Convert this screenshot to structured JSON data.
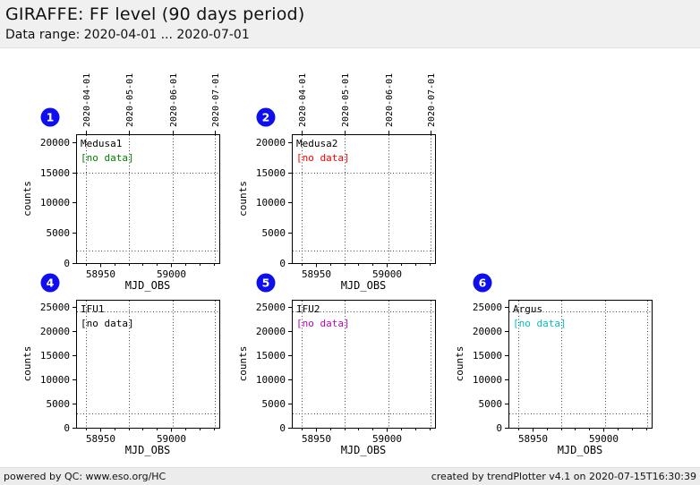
{
  "header": {
    "title": "GIRAFFE: FF level (90 days period)",
    "subtitle": "Data range: 2020-04-01 ... 2020-07-01"
  },
  "footer": {
    "left": "powered by QC: www.eso.org/HC",
    "right": "created by trendPlotter v4.1 on 2020-07-15T16:30:39"
  },
  "colors": {
    "badge_blue": "#0f0fee",
    "badge_number": "#ffffff",
    "plot_border": "#000000",
    "grid_dotted": "#444444",
    "no_data_green": "#008000",
    "no_data_red": "#ff0000",
    "no_data_black": "#000000",
    "no_data_magenta": "#c000c0",
    "no_data_cyan": "#00bfbf",
    "header_bg": "#f0f0f0",
    "footer_bg": "#ececec"
  },
  "chart_data": [
    {
      "type": "scatter",
      "plot_number": 1,
      "series_label": "Medusa1",
      "annotation": "[no data]",
      "annotation_color": "#008000",
      "points": [],
      "xlabel": "MJD_OBS",
      "ylabel": "counts",
      "xlim": [
        58933,
        59034
      ],
      "ylim": [
        0,
        21300
      ],
      "xticks": [
        58950,
        59000
      ],
      "xtick_minor_step": 10,
      "yticks": [
        0,
        5000,
        10000,
        15000,
        20000
      ],
      "date_gridlines": [
        {
          "mjd": 58940,
          "label": "2020-04-01"
        },
        {
          "mjd": 58970,
          "label": "2020-05-01"
        },
        {
          "mjd": 59001,
          "label": "2020-06-01"
        },
        {
          "mjd": 59031,
          "label": "2020-07-01"
        }
      ],
      "show_top_date_labels": true,
      "threshold_lines": [
        2000,
        15000
      ],
      "grid": "dotted",
      "row": 1,
      "col": 1
    },
    {
      "type": "scatter",
      "plot_number": 2,
      "series_label": "Medusa2",
      "annotation": "[no data]",
      "annotation_color": "#ff0000",
      "points": [],
      "xlabel": "MJD_OBS",
      "ylabel": "counts",
      "xlim": [
        58933,
        59034
      ],
      "ylim": [
        0,
        21300
      ],
      "xticks": [
        58950,
        59000
      ],
      "xtick_minor_step": 10,
      "yticks": [
        0,
        5000,
        10000,
        15000,
        20000
      ],
      "date_gridlines": [
        {
          "mjd": 58940,
          "label": "2020-04-01"
        },
        {
          "mjd": 58970,
          "label": "2020-05-01"
        },
        {
          "mjd": 59001,
          "label": "2020-06-01"
        },
        {
          "mjd": 59031,
          "label": "2020-07-01"
        }
      ],
      "show_top_date_labels": true,
      "threshold_lines": [
        2000,
        15000
      ],
      "grid": "dotted",
      "row": 1,
      "col": 2
    },
    {
      "type": "scatter",
      "plot_number": 4,
      "series_label": "IFU1",
      "annotation": "[no data]",
      "annotation_color": "#000000",
      "points": [],
      "xlabel": "MJD_OBS",
      "ylabel": "counts",
      "xlim": [
        58933,
        59034
      ],
      "ylim": [
        0,
        26400
      ],
      "xticks": [
        58950,
        59000
      ],
      "xtick_minor_step": 10,
      "yticks": [
        0,
        5000,
        10000,
        15000,
        20000,
        25000
      ],
      "date_gridlines": [
        {
          "mjd": 58940,
          "label": "2020-04-01"
        },
        {
          "mjd": 58970,
          "label": "2020-05-01"
        },
        {
          "mjd": 59001,
          "label": "2020-06-01"
        },
        {
          "mjd": 59031,
          "label": "2020-07-01"
        }
      ],
      "show_top_date_labels": false,
      "threshold_lines": [
        3000,
        24000
      ],
      "grid": "dotted",
      "row": 2,
      "col": 1
    },
    {
      "type": "scatter",
      "plot_number": 5,
      "series_label": "IFU2",
      "annotation": "[no data]",
      "annotation_color": "#c000c0",
      "points": [],
      "xlabel": "MJD_OBS",
      "ylabel": "counts",
      "xlim": [
        58933,
        59034
      ],
      "ylim": [
        0,
        26400
      ],
      "xticks": [
        58950,
        59000
      ],
      "xtick_minor_step": 10,
      "yticks": [
        0,
        5000,
        10000,
        15000,
        20000,
        25000
      ],
      "date_gridlines": [
        {
          "mjd": 58940,
          "label": "2020-04-01"
        },
        {
          "mjd": 58970,
          "label": "2020-05-01"
        },
        {
          "mjd": 59001,
          "label": "2020-06-01"
        },
        {
          "mjd": 59031,
          "label": "2020-07-01"
        }
      ],
      "show_top_date_labels": false,
      "threshold_lines": [
        3000,
        24000
      ],
      "grid": "dotted",
      "row": 2,
      "col": 2
    },
    {
      "type": "scatter",
      "plot_number": 6,
      "series_label": "Argus",
      "annotation": "[no data]",
      "annotation_color": "#00bfbf",
      "points": [],
      "xlabel": "MJD_OBS",
      "ylabel": "counts",
      "xlim": [
        58933,
        59034
      ],
      "ylim": [
        0,
        26400
      ],
      "xticks": [
        58950,
        59000
      ],
      "xtick_minor_step": 10,
      "yticks": [
        0,
        5000,
        10000,
        15000,
        20000,
        25000
      ],
      "date_gridlines": [
        {
          "mjd": 58940,
          "label": "2020-04-01"
        },
        {
          "mjd": 58970,
          "label": "2020-05-01"
        },
        {
          "mjd": 59001,
          "label": "2020-06-01"
        },
        {
          "mjd": 59031,
          "label": "2020-07-01"
        }
      ],
      "show_top_date_labels": false,
      "threshold_lines": [
        3000,
        24000
      ],
      "grid": "dotted",
      "row": 2,
      "col": 3
    }
  ]
}
